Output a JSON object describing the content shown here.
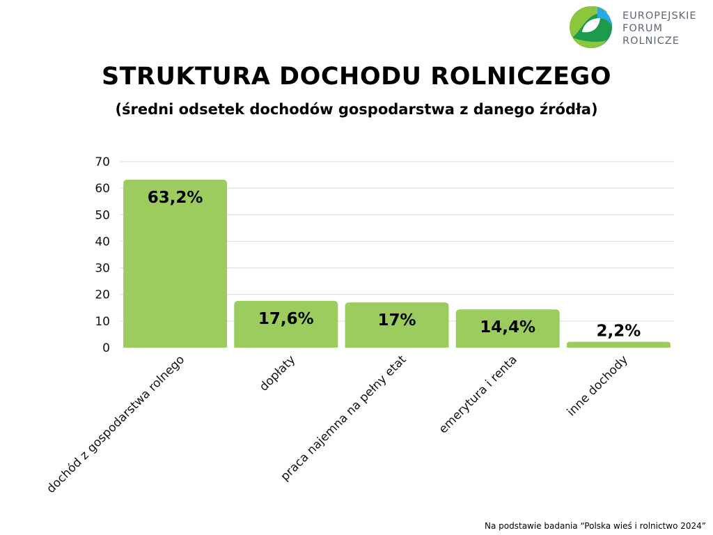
{
  "logo": {
    "lines": [
      "EUROPEJSKIE",
      "FORUM",
      "ROLNICZE"
    ],
    "colors": {
      "light_green": "#8cc63f",
      "dark_green": "#1d9a4e",
      "blue": "#29a9e1"
    }
  },
  "title": "STRUKTURA DOCHODU ROLNICZEGO",
  "subtitle": "(średni odsetek dochodów gospodarstwa z danego źródła)",
  "footer": "Na podstawie badania “Polska wieś i rolnictwo 2024”",
  "chart_data": {
    "type": "bar",
    "categories": [
      "dochód z gospodarstwa rolnego",
      "dopłaty",
      "praca najemna na pełny etat",
      "emerytura i renta",
      "inne dochody"
    ],
    "values": [
      63.2,
      17.6,
      17,
      14.4,
      2.2
    ],
    "data_labels": [
      "63,2%",
      "17,6%",
      "17%",
      "14,4%",
      "2,2%"
    ],
    "yticks": [
      "0",
      "10",
      "20",
      "30",
      "40",
      "50",
      "60",
      "70"
    ],
    "ylim": [
      0,
      70
    ],
    "bar_color": "#9ccc5e",
    "grid_color": "#d9d9d9",
    "grid": true,
    "xlabel_rotation": "45deg"
  }
}
